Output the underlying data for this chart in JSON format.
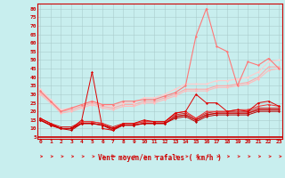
{
  "xlabel": "Vent moyen/en rafales ( km/h )",
  "bg_color": "#c8eeee",
  "grid_color": "#aacccc",
  "x": [
    0,
    1,
    2,
    3,
    4,
    5,
    6,
    7,
    8,
    9,
    10,
    11,
    12,
    13,
    14,
    15,
    16,
    17,
    18,
    19,
    20,
    21,
    22,
    23
  ],
  "series": [
    {
      "y": [
        16,
        13,
        10,
        10,
        15,
        43,
        10,
        9,
        13,
        13,
        15,
        14,
        14,
        19,
        20,
        30,
        25,
        25,
        20,
        21,
        20,
        25,
        26,
        23
      ],
      "color": "#dd0000",
      "lw": 0.7,
      "marker": "D",
      "ms": 1.5,
      "zorder": 5
    },
    {
      "y": [
        15,
        12,
        10,
        10,
        13,
        13,
        12,
        10,
        12,
        12,
        13,
        13,
        13,
        17,
        18,
        15,
        18,
        19,
        19,
        19,
        19,
        21,
        21,
        21
      ],
      "color": "#cc0000",
      "lw": 1.0,
      "marker": "D",
      "ms": 1.5,
      "zorder": 6
    },
    {
      "y": [
        15,
        12,
        10,
        9,
        13,
        13,
        12,
        9,
        12,
        12,
        13,
        13,
        13,
        16,
        17,
        14,
        17,
        18,
        18,
        18,
        18,
        20,
        20,
        20
      ],
      "color": "#bb0000",
      "lw": 0.7,
      "marker": "D",
      "ms": 1.5,
      "zorder": 4
    },
    {
      "y": [
        16,
        13,
        11,
        11,
        14,
        14,
        13,
        11,
        13,
        13,
        14,
        14,
        14,
        18,
        19,
        16,
        19,
        20,
        20,
        20,
        20,
        22,
        22,
        22
      ],
      "color": "#cc2222",
      "lw": 0.7,
      "marker": "D",
      "ms": 1.5,
      "zorder": 4
    },
    {
      "y": [
        16,
        13,
        10,
        10,
        14,
        14,
        13,
        10,
        13,
        13,
        14,
        14,
        14,
        19,
        20,
        16,
        20,
        20,
        20,
        21,
        21,
        23,
        24,
        23
      ],
      "color": "#ee3333",
      "lw": 0.7,
      "marker": "D",
      "ms": 1.5,
      "zorder": 4
    },
    {
      "y": [
        32,
        26,
        20,
        22,
        24,
        26,
        24,
        24,
        26,
        26,
        27,
        27,
        29,
        31,
        35,
        64,
        80,
        58,
        55,
        35,
        49,
        47,
        51,
        45
      ],
      "color": "#ff7777",
      "lw": 0.8,
      "marker": "D",
      "ms": 1.5,
      "zorder": 3
    },
    {
      "y": [
        31,
        26,
        20,
        21,
        23,
        25,
        23,
        22,
        24,
        24,
        26,
        26,
        28,
        30,
        33,
        33,
        33,
        35,
        35,
        36,
        37,
        40,
        46,
        46
      ],
      "color": "#ffaaaa",
      "lw": 0.8,
      "marker": "D",
      "ms": 1.5,
      "zorder": 2
    },
    {
      "y": [
        30,
        25,
        19,
        20,
        22,
        24,
        22,
        21,
        23,
        23,
        25,
        25,
        27,
        29,
        32,
        32,
        32,
        34,
        34,
        35,
        36,
        39,
        44,
        45
      ],
      "color": "#ffbbbb",
      "lw": 0.8,
      "marker": "D",
      "ms": 1.5,
      "zorder": 2
    },
    {
      "y": [
        33,
        27,
        21,
        22,
        24,
        26,
        24,
        23,
        25,
        25,
        28,
        28,
        30,
        33,
        36,
        36,
        36,
        38,
        38,
        39,
        40,
        43,
        49,
        50
      ],
      "color": "#ffcccc",
      "lw": 0.8,
      "marker": "D",
      "ms": 1.5,
      "zorder": 2
    }
  ],
  "arrow_color": "#dd2222",
  "yticks": [
    5,
    10,
    15,
    20,
    25,
    30,
    35,
    40,
    45,
    50,
    55,
    60,
    65,
    70,
    75,
    80
  ],
  "ylim": [
    4,
    83
  ],
  "xlim": [
    -0.3,
    23.3
  ]
}
